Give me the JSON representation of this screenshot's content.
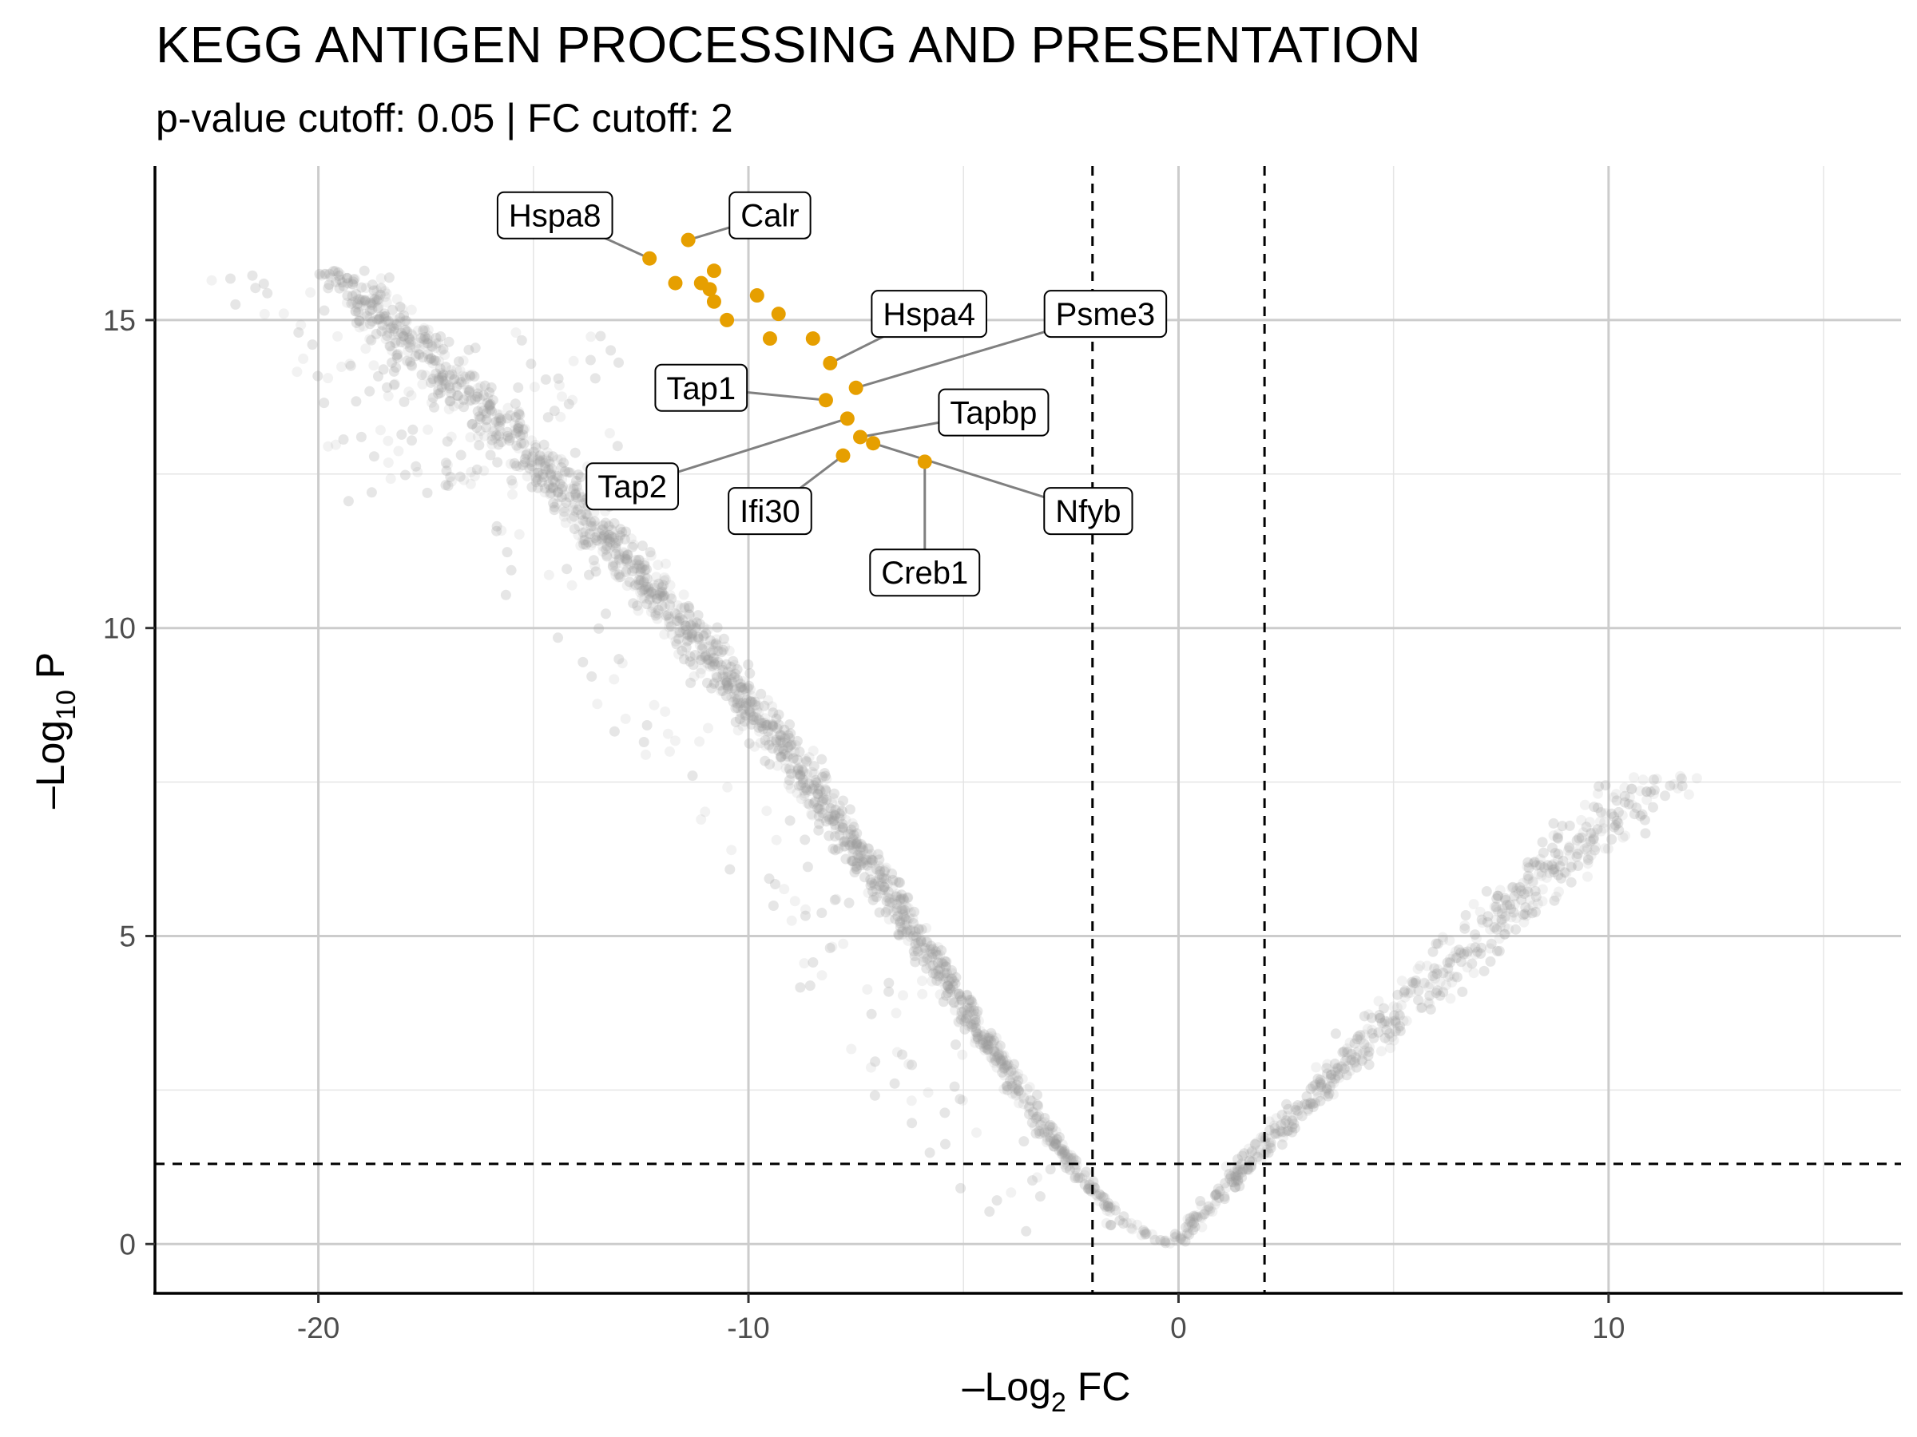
{
  "chart_data": {
    "type": "scatter",
    "title": "KEGG ANTIGEN PROCESSING AND PRESENTATION",
    "subtitle": "p-value cutoff: 0.05 | FC cutoff: 2",
    "xlabel": {
      "prefix": "–Log",
      "sub": "2",
      "suffix": " FC"
    },
    "ylabel": {
      "prefix": "–Log",
      "sub": "10",
      "suffix": " P"
    },
    "xlim": [
      -23.8,
      16.8
    ],
    "ylim": [
      -0.8,
      17.5
    ],
    "xticks": [
      -20,
      -10,
      0,
      10
    ],
    "xtick_labels": [
      "-20",
      "-10",
      "0",
      "10"
    ],
    "yticks": [
      0,
      5,
      10,
      15
    ],
    "ytick_labels": [
      "0",
      "5",
      "10",
      "15"
    ],
    "cutoffs": {
      "fc_neg": -2,
      "fc_pos": 2,
      "pvalue_log": 1.301
    },
    "background_points": "~10000 non-significant genes forming a V shape (grey, semi-transparent)",
    "colors": {
      "highlight": "#E69F00",
      "background": "#999999",
      "grid_major": "#cccccc",
      "grid_minor": "#e5e5e5",
      "connector": "#808080"
    },
    "highlighted_genes": [
      {
        "name": "Hspa8",
        "x": -12.3,
        "y": 16.0,
        "label_x": -14.5,
        "label_y": 16.7
      },
      {
        "name": "Calr",
        "x": -11.4,
        "y": 16.3,
        "label_x": -9.5,
        "label_y": 16.7
      },
      {
        "name": "Hspa4",
        "x": -8.1,
        "y": 14.3,
        "label_x": -5.8,
        "label_y": 15.1
      },
      {
        "name": "Psme3",
        "x": -7.5,
        "y": 13.9,
        "label_x": -1.7,
        "label_y": 15.1
      },
      {
        "name": "Tap1",
        "x": -8.2,
        "y": 13.7,
        "label_x": -11.1,
        "label_y": 13.9
      },
      {
        "name": "Tapbp",
        "x": -7.4,
        "y": 13.1,
        "label_x": -4.3,
        "label_y": 13.5
      },
      {
        "name": "Tap2",
        "x": -7.7,
        "y": 13.4,
        "label_x": -12.7,
        "label_y": 12.3
      },
      {
        "name": "Ifi30",
        "x": -7.8,
        "y": 12.8,
        "label_x": -9.5,
        "label_y": 11.9
      },
      {
        "name": "Nfyb",
        "x": -7.1,
        "y": 13.0,
        "label_x": -2.1,
        "label_y": 11.9
      },
      {
        "name": "Creb1",
        "x": -5.9,
        "y": 12.7,
        "label_x": -5.9,
        "label_y": 10.9
      }
    ],
    "other_highlighted_points": [
      [
        -11.7,
        15.6
      ],
      [
        -11.1,
        15.6
      ],
      [
        -10.9,
        15.5
      ],
      [
        -10.8,
        15.3
      ],
      [
        -10.8,
        15.8
      ],
      [
        -10.5,
        15.0
      ],
      [
        -9.8,
        15.4
      ],
      [
        -9.3,
        15.1
      ],
      [
        -9.5,
        14.7
      ],
      [
        -8.5,
        14.7
      ]
    ]
  }
}
